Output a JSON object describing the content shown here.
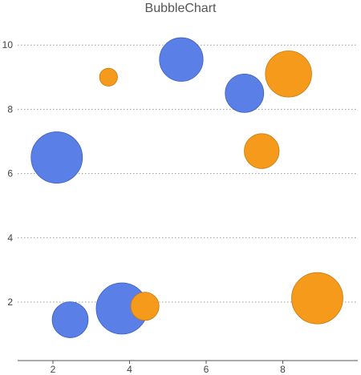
{
  "chart_data": {
    "type": "scatter",
    "title": "BubbleChart",
    "xlabel": "",
    "ylabel": "",
    "xlim": [
      1,
      10
    ],
    "ylim": [
      0.2,
      10.6
    ],
    "x_ticks": [
      2,
      4,
      6,
      8
    ],
    "y_ticks": [
      2,
      4,
      6,
      8,
      10
    ],
    "grid": "horizontal dotted",
    "series": [
      {
        "color": "#5a7fe6",
        "points": [
          {
            "x": 2.1,
            "y": 6.5,
            "size": 1.0
          },
          {
            "x": 2.45,
            "y": 1.45,
            "size": 0.7
          },
          {
            "x": 3.8,
            "y": 1.8,
            "size": 1.0
          },
          {
            "x": 5.35,
            "y": 9.55,
            "size": 0.85
          },
          {
            "x": 7.0,
            "y": 8.5,
            "size": 0.75
          }
        ]
      },
      {
        "color": "#f59a1a",
        "points": [
          {
            "x": 3.45,
            "y": 9.0,
            "size": 0.35
          },
          {
            "x": 4.4,
            "y": 1.87,
            "size": 0.55
          },
          {
            "x": 7.45,
            "y": 6.7,
            "size": 0.68
          },
          {
            "x": 8.15,
            "y": 9.1,
            "size": 0.9
          },
          {
            "x": 8.9,
            "y": 2.12,
            "size": 1.0
          }
        ]
      }
    ]
  }
}
